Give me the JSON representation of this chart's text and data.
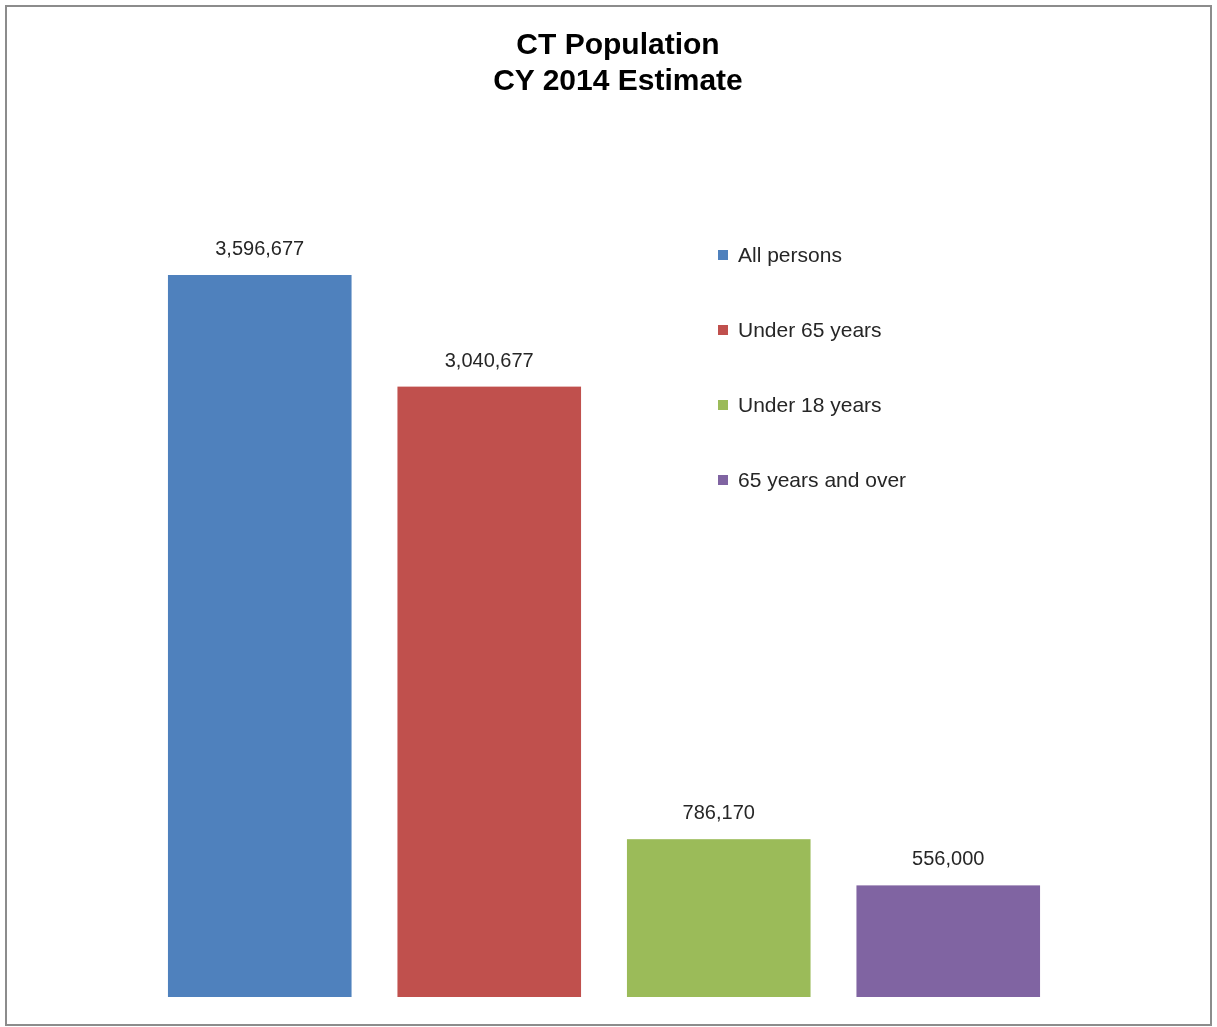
{
  "chart_data": {
    "type": "bar",
    "title": "CT Population",
    "subtitle": "CY 2014 Estimate",
    "categories": [
      null
    ],
    "series": [
      {
        "name": "All persons",
        "color": "#4f81bd",
        "values": [
          3596677
        ],
        "value_labels": [
          "3,596,677"
        ]
      },
      {
        "name": "Under 65 years",
        "color": "#c0504d",
        "values": [
          3040677
        ],
        "value_labels": [
          "3,040,677"
        ]
      },
      {
        "name": "Under 18 years",
        "color": "#9bbb59",
        "values": [
          786170
        ],
        "value_labels": [
          "786,170"
        ]
      },
      {
        "name": "65 years and over",
        "color": "#8064a2",
        "values": [
          556000
        ],
        "value_labels": [
          "556,000"
        ]
      }
    ],
    "legend": "top right"
  }
}
